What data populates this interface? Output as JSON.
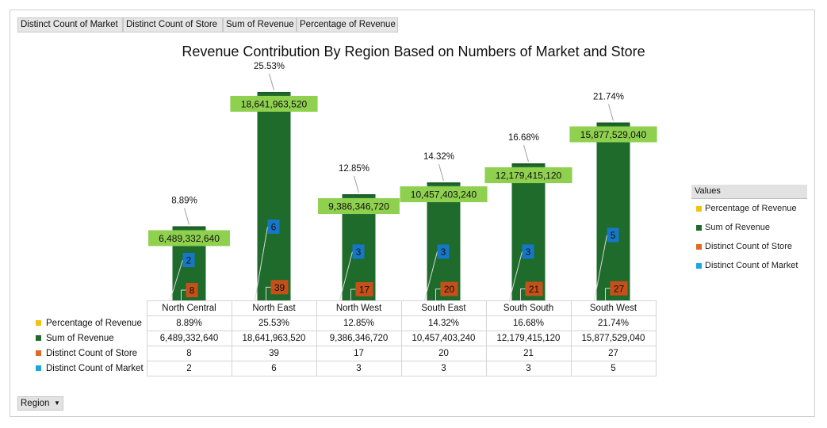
{
  "field_buttons": [
    "Distinct Count of Market",
    "Distinct Count of Store",
    "Sum of Revenue",
    "Percentage of Revenue"
  ],
  "axis_field_button": "Region",
  "legend": {
    "title": "Values",
    "items": [
      {
        "label": "Percentage of Revenue",
        "color": "#f2c20f"
      },
      {
        "label": "Sum of Revenue",
        "color": "#1e6b2b"
      },
      {
        "label": "Distinct Count of Store",
        "color": "#e06a22"
      },
      {
        "label": "Distinct Count of Market",
        "color": "#1ba7dd"
      }
    ]
  },
  "chart_data": {
    "type": "bar",
    "title": "Revenue Contribution By Region Based on Numbers of Market and Store",
    "categories": [
      "North Central",
      "North East",
      "North West",
      "South East",
      "South South",
      "South West"
    ],
    "series": [
      {
        "name": "Percentage of Revenue",
        "values": [
          0.0889,
          0.2553,
          0.1285,
          0.1432,
          0.1668,
          0.2174
        ],
        "labels": [
          "8.89%",
          "25.53%",
          "12.85%",
          "14.32%",
          "16.68%",
          "21.74%"
        ],
        "color": "#f2c20f"
      },
      {
        "name": "Sum of Revenue",
        "values": [
          6489332640,
          18641963520,
          9386346720,
          10457403240,
          12179415120,
          15877529040
        ],
        "labels": [
          "6,489,332,640",
          "18,641,963,520",
          "9,386,346,720",
          "10,457,403,240",
          "12,179,415,120",
          "15,877,529,040"
        ],
        "color": "#1e6b2b"
      },
      {
        "name": "Distinct Count of Store",
        "values": [
          8,
          39,
          17,
          20,
          21,
          27
        ],
        "labels": [
          "8",
          "39",
          "17",
          "20",
          "21",
          "27"
        ],
        "color": "#e06a22"
      },
      {
        "name": "Distinct Count of Market",
        "values": [
          2,
          6,
          3,
          3,
          3,
          5
        ],
        "labels": [
          "2",
          "6",
          "3",
          "3",
          "3",
          "5"
        ],
        "color": "#1ba7dd"
      }
    ],
    "data_table": true,
    "legend_position": "right",
    "gridlines": false
  }
}
